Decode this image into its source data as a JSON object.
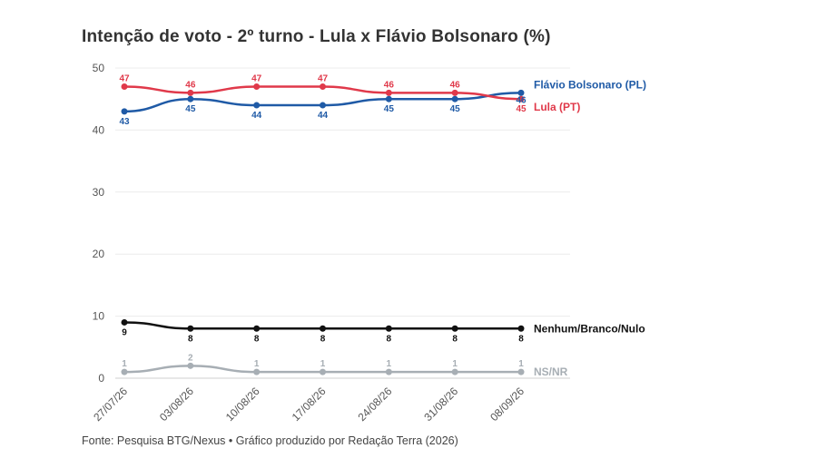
{
  "chart_data": {
    "type": "line",
    "title": "Intenção de voto - 2º turno - Lula x Flávio Bolsonaro (%)",
    "source": "Fonte: Pesquisa BTG/Nexus • Gráfico produzido por Redação Terra (2026)",
    "categories": [
      "27/07/26",
      "03/08/26",
      "10/08/26",
      "17/08/26",
      "24/08/26",
      "31/08/26",
      "08/09/26"
    ],
    "ylim": [
      0,
      50
    ],
    "yticks": [
      0,
      10,
      20,
      30,
      40,
      50
    ],
    "grid": true,
    "series": [
      {
        "name": "Flávio Bolsonaro (PL)",
        "color": "#1f5aa6",
        "values": [
          43,
          45,
          44,
          44,
          45,
          45,
          46
        ]
      },
      {
        "name": "Lula (PT)",
        "color": "#e0394a",
        "values": [
          47,
          46,
          47,
          47,
          46,
          46,
          45
        ]
      },
      {
        "name": "Nenhum/Branco/Nulo",
        "color": "#111111",
        "values": [
          9,
          8,
          8,
          8,
          8,
          8,
          8
        ]
      },
      {
        "name": "NS/NR",
        "color": "#a7aeb4",
        "values": [
          1,
          2,
          1,
          1,
          1,
          1,
          1
        ]
      }
    ]
  }
}
